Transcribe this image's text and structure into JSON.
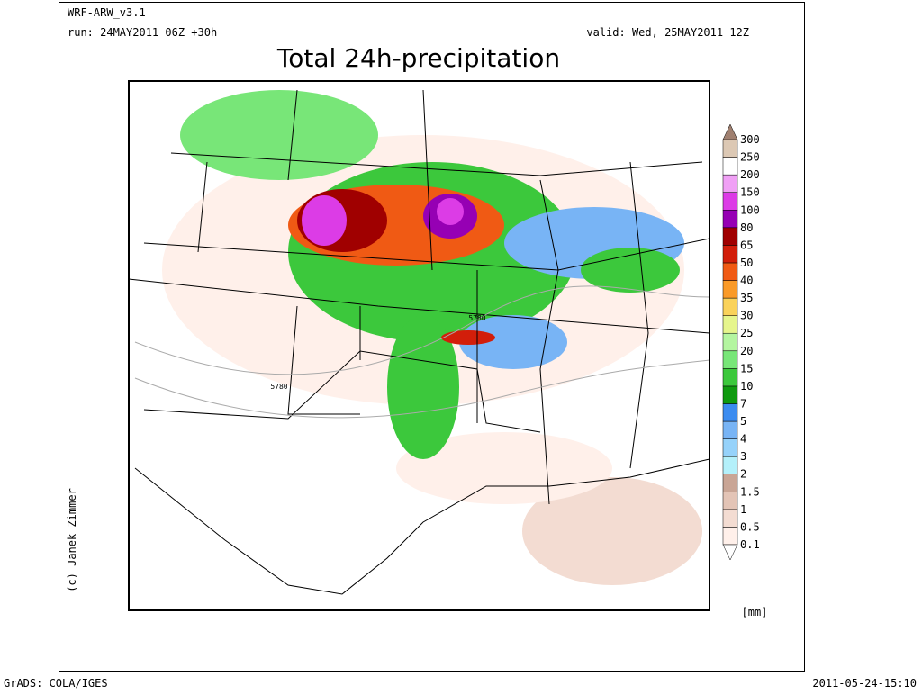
{
  "header": {
    "model": "WRF-ARW_v3.1",
    "run": "run: 24MAY2011 06Z +30h",
    "valid": "valid: Wed, 25MAY2011 12Z",
    "title": "Total 24h-precipitation"
  },
  "map": {
    "contour_labels": [
      "5780",
      "5780"
    ]
  },
  "legend": {
    "labels": [
      "0.1",
      "0.5",
      "1",
      "1.5",
      "2",
      "3",
      "4",
      "5",
      "7",
      "10",
      "15",
      "20",
      "25",
      "30",
      "35",
      "40",
      "50",
      "65",
      "80",
      "100",
      "150",
      "200",
      "250",
      "300"
    ],
    "colors": [
      "#fff0ea",
      "#f3dcd2",
      "#e3c4b6",
      "#c9a595",
      "#b4f0fa",
      "#96d2fa",
      "#78b4f5",
      "#3c8cf0",
      "#0f9a0f",
      "#3cc83c",
      "#78e678",
      "#b4f5a0",
      "#e6f58c",
      "#fad25a",
      "#fa9a28",
      "#f05a14",
      "#d21e0a",
      "#a00000",
      "#9600b4",
      "#dc3ce6",
      "#f0a0f5",
      "#ffffff",
      "#dcc8b4"
    ],
    "below_color": "#ffffff",
    "above_color": "#a08070",
    "unit": "[mm]"
  },
  "credit": "(c) Janek Zimmer",
  "footer": {
    "left": "GrADS: COLA/IGES",
    "right": "2011-05-24-15:10"
  }
}
